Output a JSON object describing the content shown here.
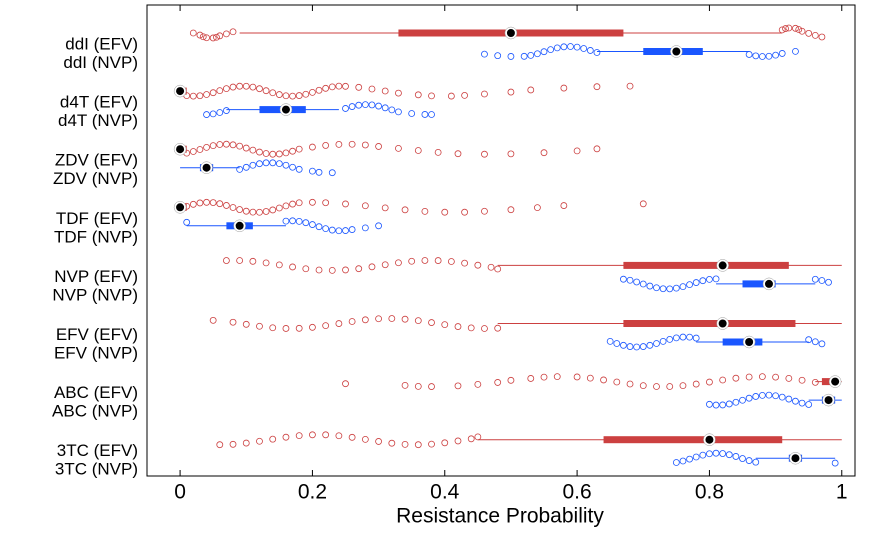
{
  "chart_data": {
    "type": "boxplot",
    "xlabel": "Resistance Probability",
    "xlim": [
      -0.05,
      1.02
    ],
    "xticks": [
      0,
      0.2,
      0.4,
      0.6,
      0.8,
      1
    ],
    "boxes": [
      {
        "label": "ddI (EFV)",
        "color": "#cc4040",
        "whislo": 0.09,
        "q1": 0.33,
        "med": 0.5,
        "q3": 0.67,
        "whishi": 0.91,
        "fliers": [
          0.02,
          0.03,
          0.035,
          0.04,
          0.05,
          0.055,
          0.06,
          0.07,
          0.08,
          0.91,
          0.915,
          0.92,
          0.93,
          0.935,
          0.94,
          0.95,
          0.96,
          0.97
        ]
      },
      {
        "label": "ddI (NVP)",
        "color": "#1a56ff",
        "whislo": 0.63,
        "q1": 0.7,
        "med": 0.75,
        "q3": 0.79,
        "whishi": 0.86,
        "fliers": [
          0.46,
          0.48,
          0.5,
          0.52,
          0.53,
          0.54,
          0.55,
          0.56,
          0.57,
          0.58,
          0.59,
          0.6,
          0.61,
          0.62,
          0.63,
          0.86,
          0.87,
          0.88,
          0.89,
          0.9,
          0.91,
          0.93
        ]
      },
      {
        "label": "d4T (EFV)",
        "color": "#cc4040",
        "whislo": 0,
        "q1": 0,
        "med": 0,
        "q3": 0.01,
        "whishi": 0.01,
        "fliers": [
          0.01,
          0.02,
          0.03,
          0.04,
          0.05,
          0.06,
          0.07,
          0.08,
          0.09,
          0.1,
          0.11,
          0.12,
          0.13,
          0.14,
          0.15,
          0.16,
          0.17,
          0.18,
          0.19,
          0.2,
          0.21,
          0.22,
          0.23,
          0.24,
          0.25,
          0.27,
          0.29,
          0.31,
          0.33,
          0.36,
          0.38,
          0.41,
          0.43,
          0.46,
          0.5,
          0.53,
          0.58,
          0.63,
          0.68
        ]
      },
      {
        "label": "d4T (NVP)",
        "color": "#1a56ff",
        "whislo": 0.07,
        "q1": 0.12,
        "med": 0.16,
        "q3": 0.19,
        "whishi": 0.24,
        "fliers": [
          0.04,
          0.05,
          0.06,
          0.07,
          0.25,
          0.26,
          0.27,
          0.28,
          0.29,
          0.3,
          0.31,
          0.32,
          0.33,
          0.35,
          0.37,
          0.38
        ]
      },
      {
        "label": "ZDV (EFV)",
        "color": "#cc4040",
        "whislo": 0,
        "q1": 0,
        "med": 0,
        "q3": 0.01,
        "whishi": 0.01,
        "fliers": [
          0.01,
          0.02,
          0.03,
          0.04,
          0.05,
          0.06,
          0.07,
          0.08,
          0.09,
          0.1,
          0.11,
          0.12,
          0.13,
          0.14,
          0.15,
          0.16,
          0.17,
          0.18,
          0.2,
          0.22,
          0.24,
          0.26,
          0.28,
          0.3,
          0.33,
          0.36,
          0.39,
          0.42,
          0.46,
          0.5,
          0.55,
          0.6,
          0.63
        ]
      },
      {
        "label": "ZDV (NVP)",
        "color": "#1a56ff",
        "whislo": 0.0,
        "q1": 0.03,
        "med": 0.04,
        "q3": 0.05,
        "whishi": 0.09,
        "fliers": [
          0.09,
          0.1,
          0.11,
          0.12,
          0.13,
          0.14,
          0.15,
          0.16,
          0.17,
          0.18,
          0.2,
          0.21,
          0.23
        ]
      },
      {
        "label": "TDF (EFV)",
        "color": "#cc4040",
        "whislo": 0,
        "q1": 0,
        "med": 0,
        "q3": 0.01,
        "whishi": 0.01,
        "fliers": [
          0.01,
          0.02,
          0.03,
          0.04,
          0.05,
          0.06,
          0.07,
          0.08,
          0.09,
          0.1,
          0.11,
          0.12,
          0.13,
          0.14,
          0.15,
          0.16,
          0.17,
          0.18,
          0.2,
          0.22,
          0.25,
          0.28,
          0.31,
          0.34,
          0.37,
          0.4,
          0.43,
          0.46,
          0.5,
          0.54,
          0.58,
          0.7
        ]
      },
      {
        "label": "TDF (NVP)",
        "color": "#1a56ff",
        "whislo": 0.01,
        "q1": 0.07,
        "med": 0.09,
        "q3": 0.11,
        "whishi": 0.16,
        "fliers": [
          0.01,
          0.16,
          0.17,
          0.18,
          0.19,
          0.2,
          0.21,
          0.22,
          0.23,
          0.24,
          0.25,
          0.26,
          0.28,
          0.3
        ]
      },
      {
        "label": "NVP (EFV)",
        "color": "#cc4040",
        "whislo": 0.48,
        "q1": 0.67,
        "med": 0.82,
        "q3": 0.92,
        "whishi": 1,
        "fliers": [
          0.07,
          0.09,
          0.11,
          0.13,
          0.15,
          0.17,
          0.19,
          0.21,
          0.23,
          0.25,
          0.27,
          0.29,
          0.31,
          0.33,
          0.35,
          0.37,
          0.39,
          0.41,
          0.43,
          0.45,
          0.47,
          0.48
        ]
      },
      {
        "label": "NVP (NVP)",
        "color": "#1a56ff",
        "whislo": 0.81,
        "q1": 0.85,
        "med": 0.89,
        "q3": 0.9,
        "whishi": 0.96,
        "fliers": [
          0.67,
          0.68,
          0.69,
          0.7,
          0.71,
          0.72,
          0.73,
          0.74,
          0.75,
          0.76,
          0.77,
          0.78,
          0.79,
          0.8,
          0.81,
          0.96,
          0.97,
          0.98
        ]
      },
      {
        "label": "EFV (EFV)",
        "color": "#cc4040",
        "whislo": 0.48,
        "q1": 0.67,
        "med": 0.82,
        "q3": 0.93,
        "whishi": 1,
        "fliers": [
          0.05,
          0.08,
          0.1,
          0.12,
          0.14,
          0.16,
          0.18,
          0.2,
          0.22,
          0.24,
          0.26,
          0.28,
          0.3,
          0.32,
          0.34,
          0.36,
          0.38,
          0.4,
          0.42,
          0.44,
          0.46,
          0.48
        ]
      },
      {
        "label": "EFV (NVP)",
        "color": "#1a56ff",
        "whislo": 0.78,
        "q1": 0.82,
        "med": 0.86,
        "q3": 0.88,
        "whishi": 0.95,
        "fliers": [
          0.65,
          0.66,
          0.67,
          0.68,
          0.69,
          0.7,
          0.71,
          0.72,
          0.73,
          0.74,
          0.75,
          0.76,
          0.77,
          0.78,
          0.95,
          0.96,
          0.97
        ]
      },
      {
        "label": "ABC (EFV)",
        "color": "#cc4040",
        "whislo": 0.96,
        "q1": 0.97,
        "med": 0.99,
        "q3": 0.99,
        "whishi": 1,
        "fliers": [
          0.25,
          0.34,
          0.36,
          0.38,
          0.42,
          0.45,
          0.48,
          0.5,
          0.53,
          0.55,
          0.57,
          0.6,
          0.62,
          0.64,
          0.66,
          0.68,
          0.7,
          0.72,
          0.74,
          0.76,
          0.78,
          0.8,
          0.82,
          0.84,
          0.86,
          0.88,
          0.9,
          0.92,
          0.94,
          0.96
        ]
      },
      {
        "label": "ABC (NVP)",
        "color": "#1a56ff",
        "whislo": 0.95,
        "q1": 0.97,
        "med": 0.98,
        "q3": 0.99,
        "whishi": 1,
        "fliers": [
          0.8,
          0.81,
          0.82,
          0.83,
          0.84,
          0.85,
          0.86,
          0.87,
          0.88,
          0.89,
          0.9,
          0.91,
          0.92,
          0.93,
          0.94,
          0.95
        ]
      },
      {
        "label": "3TC (EFV)",
        "color": "#cc4040",
        "whislo": 0.45,
        "q1": 0.64,
        "med": 0.8,
        "q3": 0.91,
        "whishi": 1,
        "fliers": [
          0.06,
          0.08,
          0.1,
          0.12,
          0.14,
          0.16,
          0.18,
          0.2,
          0.22,
          0.24,
          0.26,
          0.28,
          0.3,
          0.32,
          0.34,
          0.36,
          0.38,
          0.4,
          0.42,
          0.44,
          0.45
        ]
      },
      {
        "label": "3TC (NVP)",
        "color": "#1a56ff",
        "whislo": 0.87,
        "q1": 0.92,
        "med": 0.93,
        "q3": 0.94,
        "whishi": 0.99,
        "fliers": [
          0.75,
          0.76,
          0.77,
          0.78,
          0.79,
          0.8,
          0.81,
          0.82,
          0.83,
          0.84,
          0.85,
          0.86,
          0.87,
          0.99
        ]
      }
    ]
  }
}
